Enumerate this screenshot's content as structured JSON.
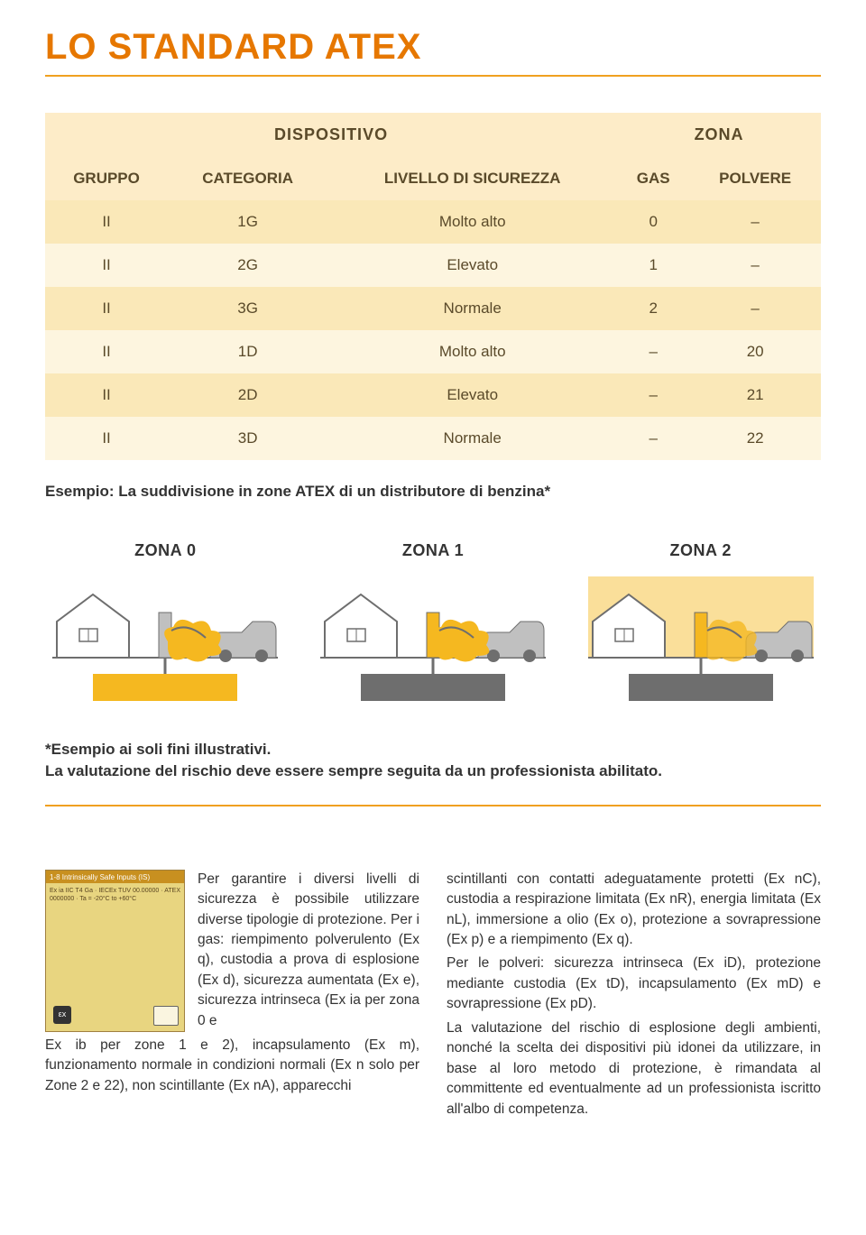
{
  "colors": {
    "accent": "#f0a020",
    "title": "#e67700",
    "rule": "#f0a020",
    "header_bg": "#fdecc8",
    "row_a": "#fae8b8",
    "row_b": "#fdf5df",
    "text": "#5a4a2a",
    "zone_yellow": "#f5b820",
    "zone_gray": "#6e6e6e",
    "zone_lightgray": "#c0c0c0",
    "label_bg": "#e8d580",
    "label_stripe": "#c89020"
  },
  "title": "LO STANDARD ATEX",
  "table": {
    "top_headers": {
      "left": "DISPOSITIVO",
      "right": "ZONA"
    },
    "headers": [
      "GRUPPO",
      "CATEGORIA",
      "LIVELLO DI SICUREZZA",
      "GAS",
      "POLVERE"
    ],
    "rows": [
      [
        "II",
        "1G",
        "Molto alto",
        "0",
        "–"
      ],
      [
        "II",
        "2G",
        "Elevato",
        "1",
        "–"
      ],
      [
        "II",
        "3G",
        "Normale",
        "2",
        "–"
      ],
      [
        "II",
        "1D",
        "Molto alto",
        "–",
        "20"
      ],
      [
        "II",
        "2D",
        "Elevato",
        "–",
        "21"
      ],
      [
        "II",
        "3D",
        "Normale",
        "–",
        "22"
      ]
    ]
  },
  "table_caption": "Esempio: La suddivisione in zone ATEX di un distributore di benzina*",
  "zones": {
    "labels": [
      "ZONA 0",
      "ZONA 1",
      "ZONA 2"
    ],
    "tank_fill": [
      "#f5b820",
      "#6e6e6e",
      "#6e6e6e"
    ],
    "cloud_fill": [
      "#f5b820",
      "#f5b820",
      "#f5b820"
    ],
    "sky_fill": [
      "#ffffff",
      "#ffffff",
      "#f5b820"
    ],
    "cloud_opacity": [
      1,
      1,
      0.8
    ]
  },
  "footnote_bold": "*Esempio ai soli fini illustrativi.",
  "footnote_rest": "La valutazione del rischio deve essere sempre seguita da un professionista abilitato.",
  "body_left_wrapped": "Per garantire i diversi livelli di sicurezza è possibile utilizzare diverse tipologie di protezione. Per i gas: riempimento polverulento (Ex q), custodia a prova di esplosione (Ex d), sicurezza aumentata (Ex e), sicurezza intrinseca (Ex ia per zona 0 e",
  "body_left_cont": "Ex ib per zone 1 e 2), incapsulamento (Ex m), funzionamento normale in condizioni normali (Ex n solo per Zone 2 e 22), non scintillante (Ex nA), apparecchi",
  "body_right": "scintillanti con contatti adeguatamente protetti (Ex nC), custodia a respirazione limitata (Ex nR), energia limitata (Ex nL), immersione a olio (Ex o), protezione a sovrapressione (Ex p) e a riempimento (Ex q).\nPer le polveri: sicurezza intrinseca (Ex iD), protezione mediante custodia (Ex tD), incapsulamento (Ex mD) e sovrapressione (Ex pD).\nLa valutazione del rischio di esplosione degli ambienti, nonché la scelta dei dispositivi più idonei da utilizzare, in base al loro metodo di protezione, è rimandata al committente ed eventualmente ad un professionista iscritto all'albo di competenza.",
  "label_text": {
    "stripe": "1-8 Intrinsically Safe Inputs (IS)",
    "lines": "Ex ia IIC T4 Ga · IECEx TUV 00.00000 · ATEX 0000000 · Ta = -20°C to +60°C"
  }
}
